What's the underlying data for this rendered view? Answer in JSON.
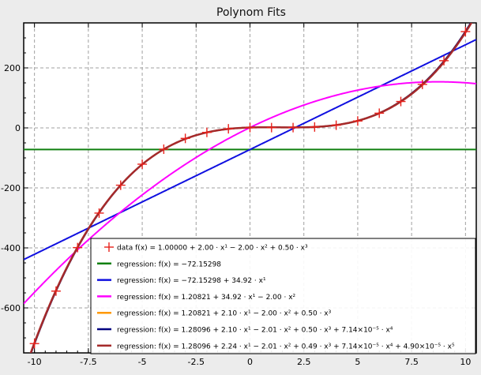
{
  "chart_data": {
    "type": "line",
    "title": "Polynom Fits",
    "xlabel": "",
    "ylabel": "",
    "xlim": [
      -10.5,
      10.5
    ],
    "ylim": [
      -750,
      350
    ],
    "x_ticks": [
      -10,
      -7.5,
      -5,
      -2.5,
      0,
      2.5,
      5,
      7.5,
      10
    ],
    "x_tick_labels": [
      "-10",
      "-7.5",
      "-5",
      "-2.5",
      "0",
      "2.5",
      "5",
      "7.5",
      "10"
    ],
    "y_ticks": [
      -600,
      -400,
      -200,
      0,
      200
    ],
    "y_tick_labels": [
      "-600",
      "-400",
      "-200",
      "0",
      "200"
    ],
    "grid": true,
    "legend_position": "bottom-right",
    "colors": {
      "data": "#e8211b",
      "deg0": "#108010",
      "deg1": "#1010e0",
      "deg2": "#ff00ff",
      "deg3": "#ff9900",
      "deg4": "#000080",
      "deg5": "#a52a2a"
    },
    "data_series": {
      "label": "data f(x) = 1.00000 + 2.00 · x¹ − 2.00 · x² + 0.50 · x³",
      "x": [
        -10,
        -9,
        -8,
        -7,
        -6,
        -5,
        -4,
        -3,
        -2,
        -1,
        0,
        1,
        2,
        3,
        4,
        5,
        6,
        7,
        8,
        9,
        10
      ],
      "y": [
        -719,
        -544,
        -399,
        -284,
        -191,
        -121,
        -71,
        -35,
        -15,
        -3,
        1,
        1,
        1,
        3,
        9,
        23,
        49,
        88,
        145,
        224,
        321
      ]
    },
    "series": [
      {
        "name": "regression: f(x) = −72.15298",
        "key": "deg0",
        "coefficients": [
          -72.15298
        ]
      },
      {
        "name": "regression: f(x) = −72.15298 + 34.92 · x¹",
        "key": "deg1",
        "coefficients": [
          -72.15298,
          34.92
        ]
      },
      {
        "name": "regression: f(x) = 1.20821 + 34.92 · x¹ − 2.00 · x²",
        "key": "deg2",
        "coefficients": [
          1.20821,
          34.92,
          -2.0
        ]
      },
      {
        "name": "regression: f(x) = 1.20821 + 2.10 · x¹ − 2.00 · x² + 0.50 · x³",
        "key": "deg3",
        "coefficients": [
          1.20821,
          2.1,
          -2.0,
          0.5
        ]
      },
      {
        "name": "regression: f(x) = 1.28096 + 2.10 · x¹ − 2.01 · x² + 0.50 · x³ + 7.14×10⁻⁵ · x⁴",
        "key": "deg4",
        "coefficients": [
          1.28096,
          2.1,
          -2.01,
          0.5,
          7.14e-05
        ]
      },
      {
        "name": "regression: f(x) = 1.28096 + 2.24 · x¹ − 2.01 · x² + 0.49 · x³ + 7.14×10⁻⁵ · x⁴ + 4.90×10⁻⁵ · x⁵",
        "key": "deg5",
        "coefficients": [
          1.28096,
          2.24,
          -2.01,
          0.49,
          7.14e-05,
          4.9e-05
        ]
      }
    ]
  }
}
